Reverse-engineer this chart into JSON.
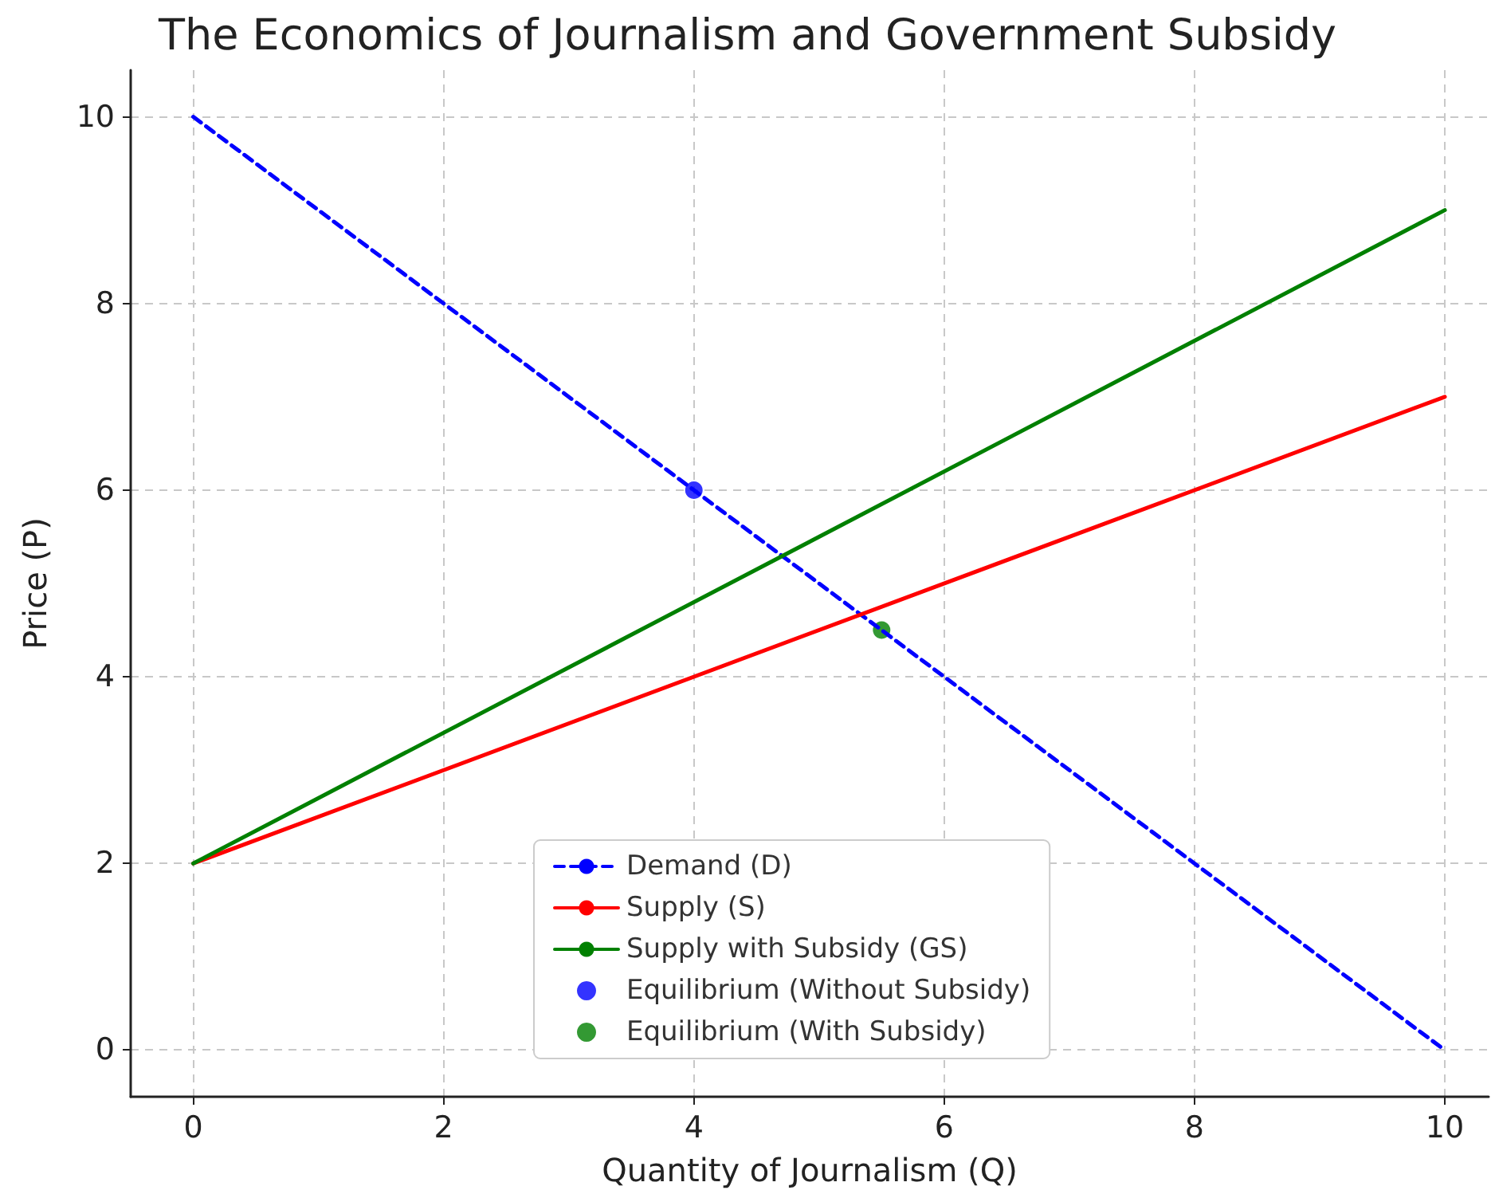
{
  "chart_data": {
    "type": "line",
    "title": "The Economics of Journalism and Government Subsidy",
    "xlabel": "Quantity of Journalism (Q)",
    "ylabel": "Price (P)",
    "series": [
      {
        "name": "Demand (D)",
        "color": "#0000ff",
        "x": [
          0,
          10
        ],
        "values": [
          10,
          0
        ],
        "line_style": "dashed"
      },
      {
        "name": "Supply (S)",
        "color": "#ff0000",
        "x": [
          0,
          10
        ],
        "values": [
          2,
          7
        ],
        "line_style": "solid"
      },
      {
        "name": "Supply with Subsidy (GS)",
        "color": "#008000",
        "x": [
          0,
          10
        ],
        "values": [
          2,
          9
        ],
        "line_style": "solid"
      },
      {
        "name": "Equilibrium (Without Subsidy)",
        "type": "scatter",
        "color": "#0000ff",
        "x": [
          4
        ],
        "values": [
          6
        ],
        "marker": "circle"
      },
      {
        "name": "Equilibrium (With Subsidy)",
        "type": "scatter",
        "color": "#008000",
        "x": [
          5.5
        ],
        "values": [
          4.5
        ],
        "marker": "circle"
      }
    ],
    "xlim": [
      -0.5,
      10.35
    ],
    "ylim": [
      -0.5,
      10.5
    ],
    "xticks": [
      0,
      2,
      4,
      6,
      8,
      10
    ],
    "yticks": [
      0,
      2,
      4,
      6,
      8,
      10
    ],
    "grid": true,
    "legend": "bottom",
    "marker": "none"
  }
}
